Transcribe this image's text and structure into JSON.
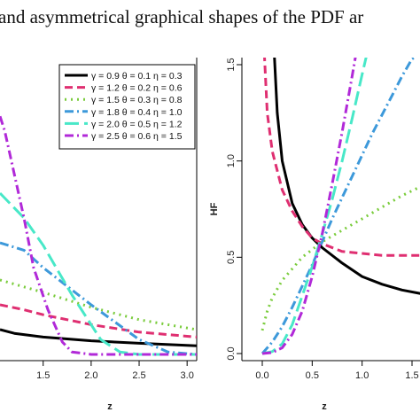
{
  "caption": "and asymmetrical graphical shapes of the PDF ar",
  "chart_data": [
    {
      "type": "line",
      "panel": "left",
      "title": "",
      "xlabel": "z",
      "ylabel": "",
      "x_ticks": [
        "1.5",
        "2.0",
        "2.5",
        "3.0"
      ],
      "xlim": [
        1.05,
        3.1
      ],
      "ylim": [
        0,
        1
      ],
      "grid": false,
      "legend_position": "top-right",
      "series": [
        {
          "name": "γ = 0.9  θ = 0.1  η = 0.3",
          "color": "#000000",
          "dash": "solid",
          "x": [
            1.05,
            1.2,
            1.5,
            2.0,
            2.5,
            3.1
          ],
          "y": [
            0.1,
            0.085,
            0.07,
            0.055,
            0.045,
            0.035
          ]
        },
        {
          "name": "γ = 1.2  θ = 0.2  η = 0.6",
          "color": "#df2f71",
          "dash": "dash",
          "x": [
            1.05,
            1.3,
            1.5,
            2.0,
            2.5,
            3.1
          ],
          "y": [
            0.2,
            0.18,
            0.16,
            0.12,
            0.09,
            0.07
          ]
        },
        {
          "name": "γ = 1.5  θ = 0.3  η = 0.8",
          "color": "#7acc3c",
          "dash": "dot",
          "x": [
            1.05,
            1.5,
            2.0,
            2.5,
            3.1
          ],
          "y": [
            0.3,
            0.25,
            0.19,
            0.14,
            0.1
          ]
        },
        {
          "name": "γ = 1.8  θ = 0.4  η = 1.0",
          "color": "#3d99da",
          "dash": "dashdot",
          "x": [
            1.05,
            1.3,
            1.5,
            2.0,
            2.5,
            2.8,
            3.1
          ],
          "y": [
            0.45,
            0.42,
            0.35,
            0.2,
            0.06,
            0.01,
            0.0
          ]
        },
        {
          "name": "γ = 2.0  θ = 0.5  η = 1.2",
          "color": "#48e8c8",
          "dash": "longdash",
          "x": [
            1.05,
            1.3,
            1.5,
            1.8,
            2.1,
            2.3,
            2.5,
            3.1
          ],
          "y": [
            0.65,
            0.55,
            0.44,
            0.24,
            0.06,
            0.01,
            0.0,
            0.0
          ]
        },
        {
          "name": "γ = 2.5  θ = 0.6  η = 1.5",
          "color": "#b129d8",
          "dash": "dashdot",
          "x": [
            1.05,
            1.1,
            1.3,
            1.4,
            1.55,
            1.7,
            1.8,
            2.0,
            3.1
          ],
          "y": [
            0.96,
            0.9,
            0.55,
            0.35,
            0.18,
            0.05,
            0.01,
            0.0,
            0.0
          ]
        }
      ]
    },
    {
      "type": "line",
      "panel": "right",
      "title": "",
      "xlabel": "z",
      "ylabel": "HF",
      "x_ticks": [
        "0.0",
        "0.5",
        "1.0",
        "1.5"
      ],
      "y_ticks": [
        "0.0",
        "0.5",
        "1.0",
        "1.5"
      ],
      "xlim": [
        -0.1,
        1.6
      ],
      "ylim": [
        -0.05,
        1.56
      ],
      "grid": false,
      "series": [
        {
          "color": "#000000",
          "dash": "solid",
          "x": [
            0.12,
            0.15,
            0.2,
            0.3,
            0.4,
            0.5,
            0.6,
            0.8,
            1.0,
            1.2,
            1.4,
            1.6
          ],
          "y": [
            1.56,
            1.25,
            1.0,
            0.78,
            0.67,
            0.6,
            0.55,
            0.47,
            0.4,
            0.36,
            0.33,
            0.31
          ]
        },
        {
          "color": "#df2f71",
          "dash": "dash",
          "x": [
            0.02,
            0.05,
            0.1,
            0.2,
            0.3,
            0.4,
            0.5,
            0.6,
            0.8,
            1.0,
            1.2,
            1.4,
            1.6
          ],
          "y": [
            1.56,
            1.25,
            1.05,
            0.85,
            0.74,
            0.66,
            0.6,
            0.57,
            0.53,
            0.52,
            0.51,
            0.51,
            0.51
          ]
        },
        {
          "color": "#7acc3c",
          "dash": "dot",
          "x": [
            0.0,
            0.05,
            0.1,
            0.2,
            0.3,
            0.4,
            0.6,
            0.8,
            1.0,
            1.2,
            1.4,
            1.6
          ],
          "y": [
            0.12,
            0.22,
            0.29,
            0.38,
            0.44,
            0.5,
            0.58,
            0.64,
            0.7,
            0.76,
            0.82,
            0.87
          ]
        },
        {
          "color": "#3d99da",
          "dash": "dashdot",
          "x": [
            0.0,
            0.1,
            0.2,
            0.3,
            0.4,
            0.5,
            0.6,
            0.7,
            0.8,
            0.9,
            1.0,
            1.1,
            1.2,
            1.3,
            1.4,
            1.5,
            1.6
          ],
          "y": [
            0.0,
            0.06,
            0.14,
            0.24,
            0.35,
            0.46,
            0.58,
            0.7,
            0.81,
            0.92,
            1.03,
            1.14,
            1.24,
            1.34,
            1.44,
            1.53,
            1.56
          ]
        },
        {
          "color": "#48e8c8",
          "dash": "longdash",
          "x": [
            0.0,
            0.1,
            0.2,
            0.3,
            0.4,
            0.5,
            0.6,
            0.7,
            0.8,
            0.9,
            1.0,
            1.05
          ],
          "y": [
            0.0,
            0.01,
            0.05,
            0.15,
            0.3,
            0.45,
            0.62,
            0.8,
            1.0,
            1.22,
            1.45,
            1.56
          ]
        },
        {
          "color": "#b129d8",
          "dash": "dashdot",
          "x": [
            0.0,
            0.1,
            0.2,
            0.3,
            0.4,
            0.5,
            0.6,
            0.7,
            0.8,
            0.9,
            0.94
          ],
          "y": [
            0.0,
            0.005,
            0.03,
            0.1,
            0.22,
            0.4,
            0.62,
            0.88,
            1.15,
            1.44,
            1.56
          ]
        }
      ]
    }
  ]
}
